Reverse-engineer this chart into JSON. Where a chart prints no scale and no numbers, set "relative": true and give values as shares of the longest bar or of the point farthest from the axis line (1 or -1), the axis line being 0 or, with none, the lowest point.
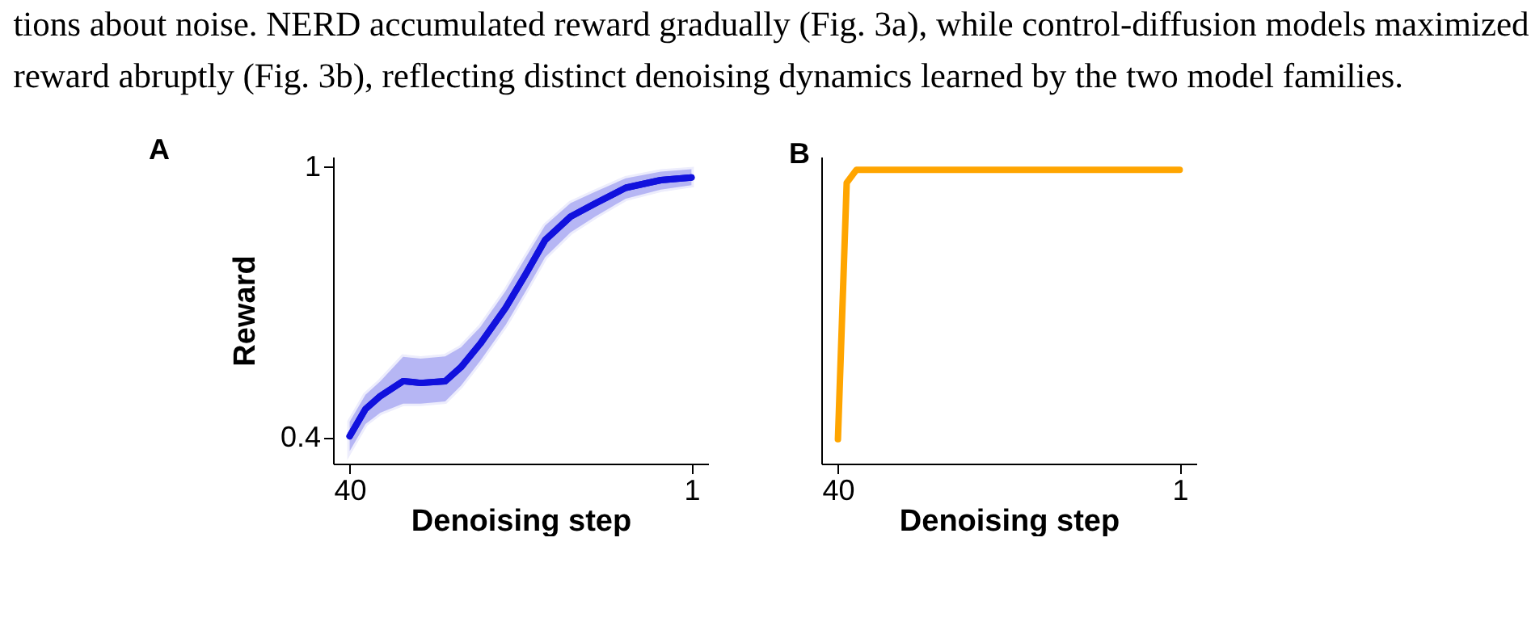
{
  "chart_data": [
    {
      "type": "line",
      "title": "A",
      "xlabel": "Denoising step",
      "ylabel": "Reward",
      "annotations": [
        "tions about noise. NERD accumulated reward gradually (Fig. 3a), while control-diffusion models maximized",
        "reward abruptly (Fig. 3b), reflecting distinct denoising dynamics learned by the two model families."
      ],
      "x": [
        40,
        38.2,
        36.5,
        33.9,
        31.9,
        29.1,
        27.3,
        25.1,
        22.2,
        19.9,
        17.7,
        14.8,
        12.0,
        8.5,
        4.5,
        1
      ],
      "series": [
        {
          "color": "#1111dd",
          "values": [
            0.403,
            0.463,
            0.492,
            0.525,
            0.521,
            0.525,
            0.556,
            0.608,
            0.688,
            0.763,
            0.838,
            0.89,
            0.919,
            0.954,
            0.971,
            0.977
          ],
          "lower": [
            0.37,
            0.43,
            0.455,
            0.475,
            0.475,
            0.48,
            0.515,
            0.57,
            0.65,
            0.725,
            0.8,
            0.855,
            0.89,
            0.93,
            0.95,
            0.96
          ],
          "upper": [
            0.435,
            0.495,
            0.525,
            0.579,
            0.575,
            0.58,
            0.6,
            0.645,
            0.725,
            0.8,
            0.87,
            0.92,
            0.945,
            0.975,
            0.99,
            0.995
          ]
        }
      ],
      "xlim": [
        41.9,
        -0.9
      ],
      "xticks": [
        40,
        1
      ],
      "ylim": [
        0.342,
        1.023
      ],
      "yticks": [
        0.4,
        {
          "value": 1,
          "label": "1"
        }
      ],
      "grid": false,
      "line_style": "solid",
      "marker": "none"
    },
    {
      "type": "line",
      "title": "B",
      "xlabel": "Denoising step",
      "relative": true,
      "tick_labels": "x",
      "x": [
        40,
        39.0,
        37.9,
        1
      ],
      "series": [
        {
          "color": "#ffa500",
          "values": [
            0.083,
            0.956,
            1,
            1
          ]
        }
      ],
      "xlim": [
        41.9,
        -0.9
      ],
      "xticks": [
        40,
        1
      ],
      "grid": false,
      "line_style": "solid",
      "marker": "none"
    }
  ]
}
